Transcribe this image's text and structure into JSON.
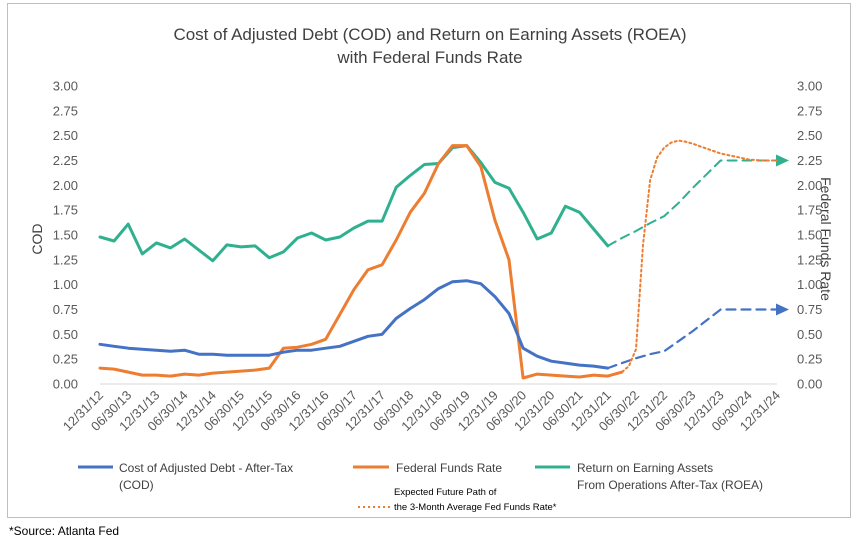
{
  "chart_data": {
    "type": "line",
    "title": "Cost of Adjusted Debt (COD) and Return on Earning Assets (ROEA)",
    "subtitle": "with Federal Funds Rate",
    "ylabel": "COD",
    "y2label": "Federal Funds Rate",
    "ylim": [
      0,
      3
    ],
    "y2lim": [
      0,
      3
    ],
    "yticks": [
      "0.00",
      "0.25",
      "0.50",
      "0.75",
      "1.00",
      "1.25",
      "1.50",
      "1.75",
      "2.00",
      "2.25",
      "2.50",
      "2.75",
      "3.00"
    ],
    "categories": [
      "12/31/12",
      "06/30/13",
      "12/31/13",
      "06/30/14",
      "12/31/14",
      "06/30/15",
      "12/31/15",
      "06/30/16",
      "12/31/16",
      "06/30/17",
      "12/31/17",
      "06/30/18",
      "12/31/18",
      "06/30/19",
      "12/31/19",
      "06/30/20",
      "12/31/20",
      "06/30/21",
      "12/31/21",
      "06/30/22",
      "12/31/22",
      "06/30/23",
      "12/31/23",
      "06/30/24",
      "12/31/24"
    ],
    "grid": false,
    "legend_position": "bottom",
    "colors": {
      "cod": "#4472c4",
      "ffr": "#ed7d31",
      "roea": "#2fb08f"
    },
    "series": [
      {
        "name": "Cost of Adjusted Debt - After-Tax (COD)",
        "key": "cod",
        "x": [
          2012.999,
          2013.249,
          2013.499,
          2013.749,
          2013.999,
          2014.249,
          2014.499,
          2014.749,
          2014.999,
          2015.249,
          2015.499,
          2015.749,
          2015.999,
          2016.249,
          2016.499,
          2016.749,
          2016.999,
          2017.249,
          2017.499,
          2017.749,
          2017.999,
          2018.249,
          2018.499,
          2018.749,
          2018.999,
          2019.249,
          2019.499,
          2019.749,
          2019.999,
          2020.249,
          2020.499,
          2020.749,
          2020.999,
          2021.249,
          2021.499,
          2021.749,
          2021.999
        ],
        "values": [
          0.4,
          0.38,
          0.36,
          0.35,
          0.34,
          0.33,
          0.34,
          0.3,
          0.3,
          0.29,
          0.29,
          0.29,
          0.29,
          0.32,
          0.34,
          0.34,
          0.36,
          0.38,
          0.43,
          0.48,
          0.5,
          0.66,
          0.76,
          0.85,
          0.96,
          1.03,
          1.04,
          1.01,
          0.88,
          0.71,
          0.36,
          0.28,
          0.23,
          0.21,
          0.19,
          0.18,
          0.16
        ]
      },
      {
        "name": "Federal Funds Rate",
        "key": "ffr",
        "x": [
          2012.999,
          2013.249,
          2013.499,
          2013.749,
          2013.999,
          2014.249,
          2014.499,
          2014.749,
          2014.999,
          2015.249,
          2015.499,
          2015.749,
          2015.999,
          2016.249,
          2016.499,
          2016.749,
          2016.999,
          2017.249,
          2017.499,
          2017.749,
          2017.999,
          2018.249,
          2018.499,
          2018.749,
          2018.999,
          2019.249,
          2019.499,
          2019.749,
          2019.999,
          2020.249,
          2020.499,
          2020.749,
          2020.999,
          2021.249,
          2021.499,
          2021.749,
          2021.999,
          2022.249
        ],
        "values": [
          0.16,
          0.15,
          0.12,
          0.09,
          0.09,
          0.08,
          0.1,
          0.09,
          0.11,
          0.12,
          0.13,
          0.14,
          0.16,
          0.36,
          0.37,
          0.4,
          0.45,
          0.7,
          0.95,
          1.15,
          1.2,
          1.45,
          1.73,
          1.92,
          2.22,
          2.4,
          2.4,
          2.19,
          1.65,
          1.25,
          0.06,
          0.1,
          0.09,
          0.08,
          0.07,
          0.09,
          0.08,
          0.12
        ]
      },
      {
        "name": "Return on Earning Assets From Operations After-Tax (ROEA)",
        "key": "roea",
        "x": [
          2012.999,
          2013.249,
          2013.499,
          2013.749,
          2013.999,
          2014.249,
          2014.499,
          2014.749,
          2014.999,
          2015.249,
          2015.499,
          2015.749,
          2015.999,
          2016.249,
          2016.499,
          2016.749,
          2016.999,
          2017.249,
          2017.499,
          2017.749,
          2017.999,
          2018.249,
          2018.499,
          2018.749,
          2018.999,
          2019.249,
          2019.499,
          2019.749,
          2019.999,
          2020.249,
          2020.499,
          2020.749,
          2020.999,
          2021.249,
          2021.499,
          2021.749,
          2021.999
        ],
        "values": [
          1.48,
          1.44,
          1.61,
          1.31,
          1.42,
          1.37,
          1.46,
          1.35,
          1.24,
          1.4,
          1.38,
          1.39,
          1.27,
          1.33,
          1.47,
          1.52,
          1.45,
          1.48,
          1.57,
          1.64,
          1.64,
          1.98,
          2.1,
          2.21,
          2.22,
          2.38,
          2.4,
          2.23,
          2.03,
          1.97,
          1.73,
          1.46,
          1.52,
          1.79,
          1.73,
          1.56,
          1.39
        ]
      },
      {
        "name": "Expected Future Path of the 3-Month Average Fed Funds Rate*",
        "key": "ffr_future",
        "x": [
          2021.999,
          2022.249,
          2022.374,
          2022.499,
          2022.624,
          2022.749,
          2022.874,
          2022.999,
          2023.124,
          2023.249,
          2023.374,
          2023.499,
          2023.749,
          2023.999,
          2024.249,
          2024.499,
          2024.749,
          2024.999
        ],
        "values": [
          0.08,
          0.12,
          0.18,
          0.35,
          1.4,
          2.05,
          2.28,
          2.38,
          2.43,
          2.45,
          2.44,
          2.42,
          2.37,
          2.32,
          2.29,
          2.26,
          2.25,
          2.25
        ]
      },
      {
        "key": "cod_future",
        "x": [
          2021.999,
          2022.249,
          2022.499,
          2022.749,
          2022.999,
          2023.249,
          2023.499,
          2023.749,
          2023.999,
          2024.249,
          2024.499,
          2024.749,
          2024.999
        ],
        "values": [
          0.16,
          0.21,
          0.26,
          0.3,
          0.33,
          0.43,
          0.53,
          0.64,
          0.75,
          0.75,
          0.75,
          0.75,
          0.75
        ]
      },
      {
        "key": "roea_future",
        "x": [
          2021.999,
          2022.249,
          2022.499,
          2022.749,
          2022.999,
          2023.249,
          2023.499,
          2023.749,
          2023.999,
          2024.249,
          2024.499,
          2024.749,
          2024.999
        ],
        "values": [
          1.39,
          1.47,
          1.54,
          1.62,
          1.69,
          1.82,
          1.97,
          2.11,
          2.25,
          2.25,
          2.25,
          2.25,
          2.25
        ]
      }
    ],
    "legend": {
      "cod_line1": "Cost of Adjusted Debt - After-Tax",
      "cod_line2": "(COD)",
      "ffr": "Federal Funds Rate",
      "roea_line1": "Return on Earning Assets",
      "roea_line2": "From Operations After-Tax (ROEA)",
      "future_line1": "Expected Future Path of",
      "future_line2": "the 3-Month Average Fed Funds Rate*"
    }
  },
  "source_note": "*Source: Atlanta Fed"
}
